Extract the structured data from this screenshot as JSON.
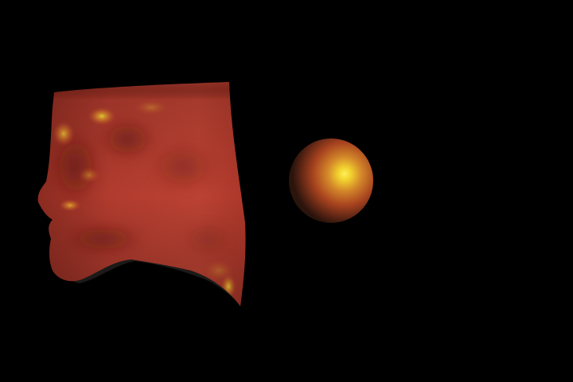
{
  "scene": {
    "background_color": "#000000",
    "objects": [
      {
        "name": "face-surface-mesh",
        "shape": "face profile surface"
      },
      {
        "name": "light-sphere",
        "shape": "sphere"
      }
    ],
    "colors": {
      "base_red": "#b53a2e",
      "dark_red": "#5e1710",
      "highlight_yellow": "#ffe23a",
      "shadow": "#1c1a18"
    }
  }
}
